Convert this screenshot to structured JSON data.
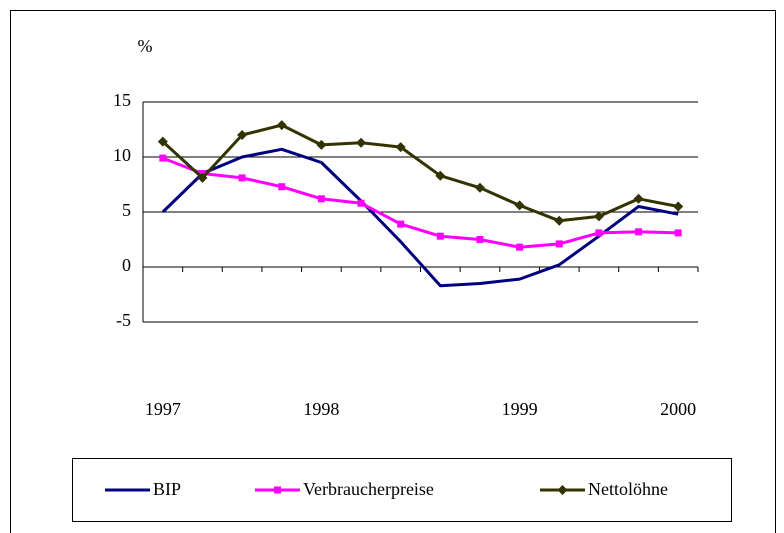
{
  "chart_data": {
    "type": "line",
    "y_unit": "%",
    "categories": [
      "1997",
      null,
      null,
      null,
      "1998",
      null,
      null,
      null,
      null,
      "1999",
      null,
      null,
      null,
      "2000"
    ],
    "series": [
      {
        "name": "BIP",
        "color": "#000080",
        "marker": "none",
        "values": [
          5,
          8.5,
          10,
          10.7,
          9.5,
          6,
          2.3,
          -1.7,
          -1.5,
          -1.1,
          0.2,
          2.8,
          5.5,
          4.8
        ]
      },
      {
        "name": "Verbraucherpreise",
        "color": "#ff00ff",
        "marker": "square",
        "values": [
          9.9,
          8.5,
          8.1,
          7.3,
          6.2,
          5.8,
          3.9,
          2.8,
          2.5,
          1.8,
          2.1,
          3.1,
          3.2,
          3.1
        ]
      },
      {
        "name": "Nettolöhne",
        "color": "#333300",
        "marker": "diamond",
        "values": [
          11.4,
          8.1,
          12,
          12.9,
          11.1,
          11.3,
          10.9,
          8.3,
          7.2,
          5.6,
          4.2,
          4.6,
          6.2,
          5.5
        ]
      }
    ],
    "ylim": [
      -5,
      15
    ],
    "yticks": [
      -5,
      0,
      5,
      10,
      15
    ],
    "grid": true
  }
}
